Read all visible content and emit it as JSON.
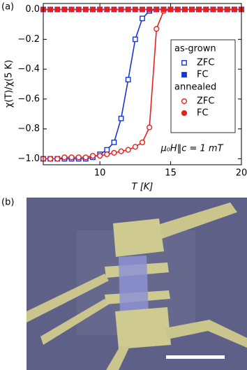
{
  "chart_data": {
    "type": "scatter-line",
    "panel_label": "(a)",
    "x_label": "T [K]",
    "y_label": "χ(T)/χ(5 K)",
    "annotation": "μ₀H‖c = 1 mT",
    "xlim": [
      6,
      20
    ],
    "xticks": [
      10,
      15,
      20
    ],
    "ylim": [
      -1.04,
      0.04
    ],
    "yticks": [
      {
        "value": 0,
        "label": "0.0"
      },
      {
        "value": -0.2,
        "label": "−0.2"
      },
      {
        "value": -0.4,
        "label": "−0.4"
      },
      {
        "value": -0.6,
        "label": "−0.6"
      },
      {
        "value": -0.8,
        "label": "−0.8"
      },
      {
        "value": -1,
        "label": "−1.0"
      }
    ],
    "x": [
      6,
      6.5,
      7,
      7.5,
      8,
      8.5,
      9,
      9.5,
      10,
      10.5,
      11,
      11.5,
      12,
      12.5,
      13,
      13.5,
      14,
      14.5,
      15,
      15.5,
      16,
      16.5,
      17,
      17.5,
      18,
      18.5,
      19,
      19.5,
      20
    ],
    "groups": [
      {
        "title": "as-grown",
        "series": [
          {
            "name": "ZFC",
            "color": "#1a35d6",
            "marker": "open-square",
            "values": [
              -1,
              -1,
              -1,
              -1,
              -1,
              -1,
              -1,
              -0.99,
              -0.97,
              -0.94,
              -0.89,
              -0.73,
              -0.47,
              -0.2,
              -0.06,
              -0.01,
              0,
              0,
              0,
              0,
              0,
              0,
              0,
              0,
              0,
              0,
              0,
              0,
              0
            ]
          },
          {
            "name": "FC",
            "color": "#1a35d6",
            "marker": "filled-square",
            "values": [
              0,
              0,
              0,
              0,
              0,
              0,
              0,
              0,
              0,
              0,
              0,
              0,
              0,
              0,
              0,
              0,
              0,
              0,
              0,
              0,
              0,
              0,
              0,
              0,
              0,
              0,
              0,
              0,
              0
            ]
          }
        ]
      },
      {
        "title": "annealed",
        "series": [
          {
            "name": "ZFC",
            "color": "#e8201c",
            "marker": "open-circle",
            "values": [
              -1,
              -1,
              -1,
              -0.99,
              -0.99,
              -0.99,
              -0.99,
              -0.98,
              -0.98,
              -0.97,
              -0.96,
              -0.95,
              -0.94,
              -0.92,
              -0.89,
              -0.79,
              -0.13,
              -0.01,
              0,
              0,
              0,
              0,
              0,
              0,
              0,
              0,
              0,
              0,
              0
            ]
          },
          {
            "name": "FC",
            "color": "#e8201c",
            "marker": "filled-circle",
            "values": [
              0,
              0,
              0,
              0,
              0,
              0,
              0,
              0,
              0,
              0,
              0,
              0,
              0,
              0,
              0,
              0,
              0,
              0,
              0,
              0,
              0,
              0,
              0,
              0,
              0,
              0,
              0,
              0,
              0
            ]
          }
        ]
      }
    ]
  },
  "image_panel": {
    "panel_label": "(b)"
  }
}
